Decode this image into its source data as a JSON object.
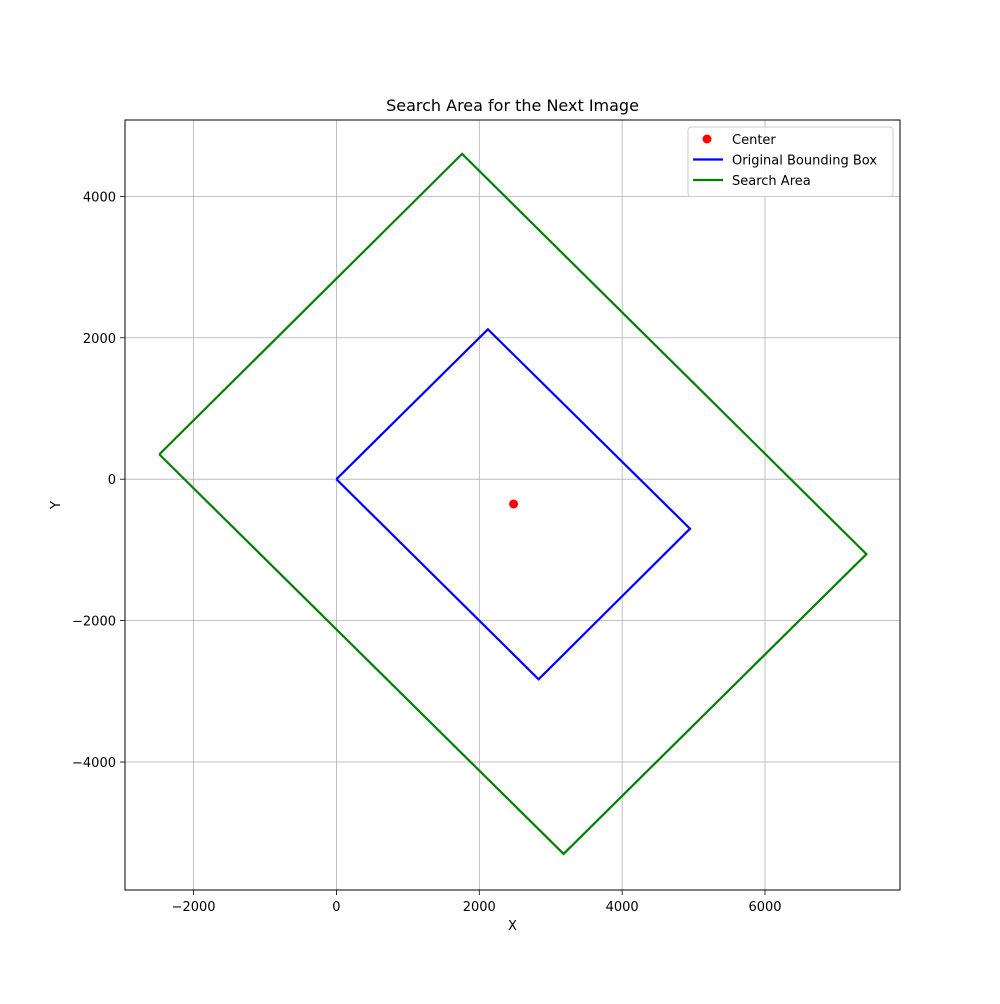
{
  "chart_data": {
    "type": "line",
    "title": "Search Area for the Next Image",
    "xlabel": "X",
    "ylabel": "Y",
    "xlim": [
      -2960,
      7890
    ],
    "ylim": [
      -5810,
      5080
    ],
    "x_ticks": [
      -2000,
      0,
      2000,
      4000,
      6000
    ],
    "x_tick_labels": [
      "−2000",
      "0",
      "2000",
      "4000",
      "6000"
    ],
    "y_ticks": [
      -4000,
      -2000,
      0,
      2000,
      4000
    ],
    "y_tick_labels": [
      "−4000",
      "−2000",
      "0",
      "2000",
      "4000"
    ],
    "grid": true,
    "legend_position": "top-right",
    "series": [
      {
        "name": "Center",
        "kind": "scatter",
        "color": "#ff0000",
        "x": [
          2480
        ],
        "y": [
          -350
        ]
      },
      {
        "name": "Original Bounding Box",
        "kind": "line",
        "color": "#0000ff",
        "x": [
          0,
          2120,
          4950,
          2830,
          0
        ],
        "y": [
          0,
          2120,
          -700,
          -2830,
          0
        ]
      },
      {
        "name": "Search Area",
        "kind": "line",
        "color": "#008000",
        "x": [
          -2480,
          1760,
          7420,
          3180,
          -2480
        ],
        "y": [
          350,
          4600,
          -1060,
          -5300,
          350
        ]
      }
    ]
  }
}
